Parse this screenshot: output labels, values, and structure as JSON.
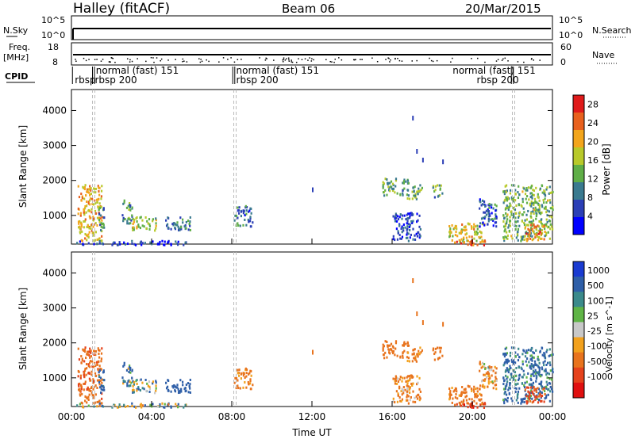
{
  "header": {
    "station": "Halley (fitACF)",
    "beam": "Beam 06",
    "date": "20/Mar/2015"
  },
  "top_panels": {
    "nsky_label": "N.Sky",
    "nsky_ticks": [
      "10^5",
      "10^0"
    ],
    "nsearch_label": "N.Search",
    "nsearch_ticks": [
      "10^5",
      "10^0"
    ],
    "freq_label": "Freq.",
    "freq_unit": "[MHz]",
    "freq_ticks": [
      "18",
      "8"
    ],
    "nave_label": "Nave",
    "nave_ticks": [
      "60",
      "0"
    ],
    "cpid_label": "CPID",
    "cpid_segments": [
      {
        "start": 0.0,
        "end": 1.1,
        "label": "rbsp 200"
      },
      {
        "start": 1.1,
        "end": 8.1,
        "label": "normal (fast) 151"
      },
      {
        "start": 8.1,
        "end": 22.0,
        "label": "normal (fast) 151"
      }
    ],
    "cpid_rbsp": [
      {
        "hour": 0.95,
        "label": "rbsp 200"
      },
      {
        "hour": 8.2,
        "label": "rbsp 200"
      },
      {
        "hour": 21.9,
        "label": "rbsp 200"
      }
    ],
    "cpid_texts": [
      {
        "hour": 0.05,
        "row": 2,
        "text": "rbsp"
      },
      {
        "hour": 1.05,
        "row": 2,
        "text": "rbsp 200"
      },
      {
        "hour": 1.1,
        "row": 1,
        "text": "normal (fast) 151"
      },
      {
        "hour": 8.1,
        "row": 1,
        "text": "normal (fast) 151"
      },
      {
        "hour": 8.1,
        "row": 2,
        "text": "rbsp 200"
      },
      {
        "hour": 18.9,
        "row": 1,
        "text": "normal (fast) 151"
      },
      {
        "hour": 20.1,
        "row": 2,
        "text": "rbsp 200"
      }
    ]
  },
  "chart_data": [
    {
      "type": "heatmap",
      "name": "power",
      "ylabel": "Slant Range [km]",
      "xlabel": "",
      "ylim": [
        180,
        4600
      ],
      "xlim": [
        0,
        24
      ],
      "y_ticks": [
        1000,
        2000,
        3000,
        4000
      ],
      "colorbar_label": "Power [dB]",
      "colorbar_ticks": [
        "4",
        "8",
        "12",
        "16",
        "20",
        "24",
        "28"
      ],
      "colorbar_range": [
        0,
        30
      ]
    },
    {
      "type": "heatmap",
      "name": "velocity",
      "ylabel": "Slant Range [km]",
      "xlabel": "Time UT",
      "ylim": [
        180,
        4600
      ],
      "xlim": [
        0,
        24
      ],
      "y_ticks": [
        1000,
        2000,
        3000,
        4000
      ],
      "x_ticks": [
        "00:00",
        "04:00",
        "08:00",
        "12:00",
        "16:00",
        "20:00",
        "00:00"
      ],
      "colorbar_label": "Velocity [m s^-1]",
      "colorbar_ticks": [
        "1000",
        "500",
        "100",
        "25",
        "-25",
        "-100",
        "-500",
        "-1000"
      ]
    }
  ],
  "scatter_clusters": [
    {
      "t0": 0.3,
      "t1": 1.5,
      "r0": 300,
      "r1": 1900,
      "pw": 20,
      "v": -400
    },
    {
      "t0": 1.3,
      "t1": 1.6,
      "r0": 600,
      "r1": 1400,
      "pw": 10,
      "v": 200
    },
    {
      "t0": 2.5,
      "t1": 3.0,
      "r0": 800,
      "r1": 1500,
      "pw": 11,
      "v": 100
    },
    {
      "t0": 3.0,
      "t1": 4.2,
      "r0": 600,
      "r1": 1000,
      "pw": 16,
      "v": 50
    },
    {
      "t0": 4.6,
      "t1": 5.9,
      "r0": 600,
      "r1": 1000,
      "pw": 9,
      "v": 300
    },
    {
      "t0": 8.1,
      "t1": 9.0,
      "r0": 700,
      "r1": 1300,
      "pw": 8,
      "v": -200
    },
    {
      "t0": 15.5,
      "t1": 16.8,
      "r0": 1600,
      "r1": 2100,
      "pw": 12,
      "v": -300
    },
    {
      "t0": 16.7,
      "t1": 17.5,
      "r0": 1500,
      "r1": 1900,
      "pw": 13,
      "v": -200
    },
    {
      "t0": 18.0,
      "t1": 18.5,
      "r0": 1550,
      "r1": 1900,
      "pw": 12,
      "v": -300
    },
    {
      "t0": 16.0,
      "t1": 17.4,
      "r0": 300,
      "r1": 1100,
      "pw": 6,
      "v": -150
    },
    {
      "t0": 18.8,
      "t1": 20.6,
      "r0": 250,
      "r1": 800,
      "pw": 18,
      "v": -200
    },
    {
      "t0": 20.3,
      "t1": 21.2,
      "r0": 700,
      "r1": 1500,
      "pw": 7,
      "v": -100
    },
    {
      "t0": 21.5,
      "t1": 24.0,
      "r0": 300,
      "r1": 1900,
      "pw": 14,
      "v": 150
    },
    {
      "t0": 22.6,
      "t1": 23.6,
      "r0": 300,
      "r1": 800,
      "pw": 22,
      "v": -600
    },
    {
      "t0": 0.0,
      "t1": 5.8,
      "r0": 180,
      "r1": 300,
      "pw": 5,
      "v": 30
    },
    {
      "t0": 19.0,
      "t1": 20.6,
      "r0": 180,
      "r1": 320,
      "pw": 26,
      "v": -900
    }
  ],
  "colors": {
    "power": [
      "#0000ff",
      "#2b3fb6",
      "#3a7a8f",
      "#5fae47",
      "#b8c92a",
      "#f3a51c",
      "#e8611e",
      "#e01b1b"
    ],
    "velocity": [
      "#1a3bd1",
      "#2f5fa8",
      "#3b8a8b",
      "#5fb446",
      "#c8c8c8",
      "#f2a11d",
      "#e8731d",
      "#e5421c",
      "#e01010"
    ]
  }
}
